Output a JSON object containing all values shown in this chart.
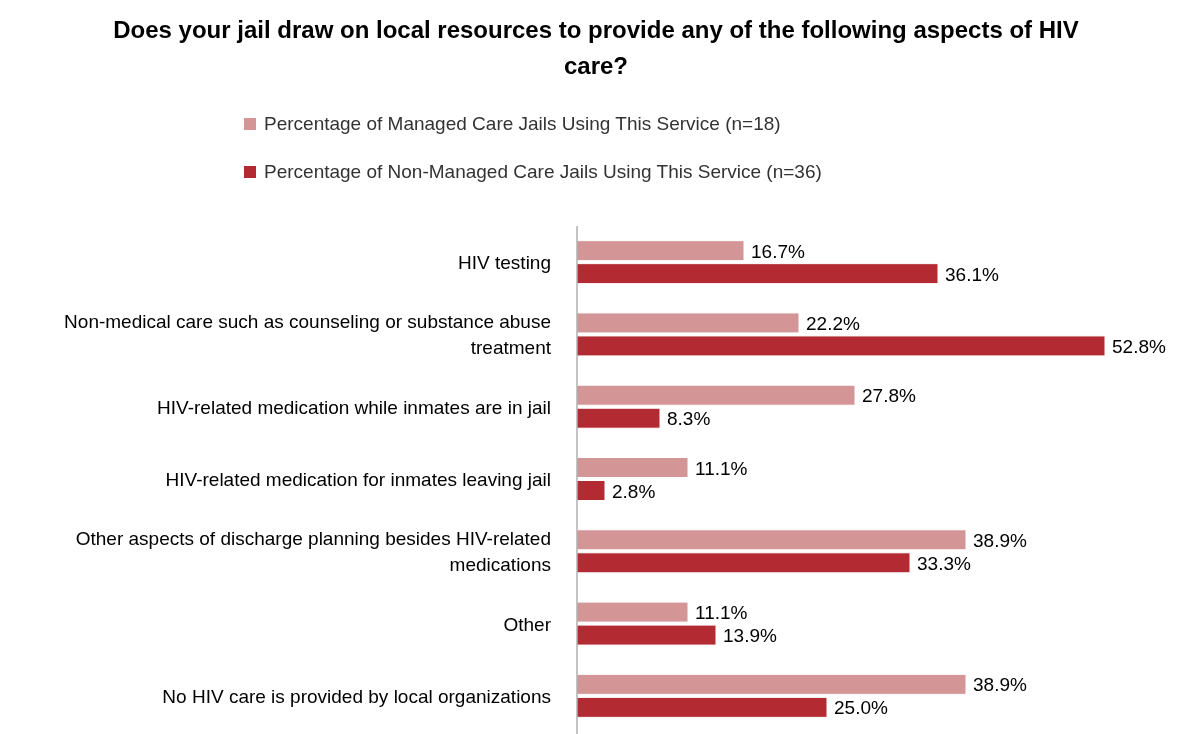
{
  "chart_data": {
    "type": "bar",
    "orientation": "horizontal",
    "title": "Does your jail draw on local resources to provide any of the following aspects of HIV care?",
    "categories": [
      "HIV testing",
      "Non-medical care such as counseling or substance abuse treatment",
      "HIV-related medication while inmates are in jail",
      "HIV-related medication for inmates leaving jail",
      "Other aspects of discharge planning besides HIV-related medications",
      "Other",
      "No HIV care is provided by local organizations"
    ],
    "series": [
      {
        "name": "Percentage of Managed Care Jails Using This Service (n=18)",
        "color": "#d49596",
        "values": [
          16.7,
          22.2,
          27.8,
          11.1,
          38.9,
          11.1,
          38.9
        ],
        "value_labels": [
          "16.7%",
          "22.2%",
          "27.8%",
          "11.1%",
          "38.9%",
          "11.1%",
          "38.9%"
        ]
      },
      {
        "name": "Percentage of Non-Managed Care Jails Using This Service (n=36)",
        "color": "#b42a33",
        "values": [
          36.1,
          52.8,
          8.3,
          2.8,
          33.3,
          13.9,
          25.0
        ],
        "value_labels": [
          "36.1%",
          "52.8%",
          "8.3%",
          "2.8%",
          "33.3%",
          "13.9%",
          "25.0%"
        ]
      }
    ],
    "legend": "top"
  }
}
